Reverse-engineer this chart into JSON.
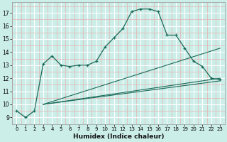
{
  "xlabel": "Humidex (Indice chaleur)",
  "bg_color": "#cceee8",
  "grid_color_major": "#ffffff",
  "grid_color_minor": "#e8b0b0",
  "line_color": "#1a6b5a",
  "xlim": [
    -0.5,
    23.5
  ],
  "ylim": [
    8.5,
    17.8
  ],
  "xticks": [
    0,
    1,
    2,
    3,
    4,
    5,
    6,
    7,
    8,
    9,
    10,
    11,
    12,
    13,
    14,
    15,
    16,
    17,
    18,
    19,
    20,
    21,
    22,
    23
  ],
  "yticks": [
    9,
    10,
    11,
    12,
    13,
    14,
    15,
    16,
    17
  ],
  "curve1_x": [
    0,
    1,
    2,
    3,
    4,
    5,
    6,
    7,
    8,
    9,
    10,
    11,
    12,
    13,
    14,
    15,
    16,
    17,
    18,
    19,
    20,
    21,
    22,
    23
  ],
  "curve1_y": [
    9.5,
    9.0,
    9.5,
    13.1,
    13.7,
    13.0,
    12.9,
    13.0,
    13.0,
    13.3,
    14.4,
    15.1,
    15.8,
    17.1,
    17.3,
    17.3,
    17.1,
    15.3,
    15.3,
    14.3,
    13.3,
    12.9,
    12.0,
    11.9
  ],
  "fan_start_x": 3,
  "fan_start_y": 10.0,
  "fan_lines": [
    {
      "end_x": 23,
      "end_y": 14.3
    },
    {
      "end_x": 23,
      "end_y": 12.0
    },
    {
      "end_x": 23,
      "end_y": 11.8
    }
  ]
}
